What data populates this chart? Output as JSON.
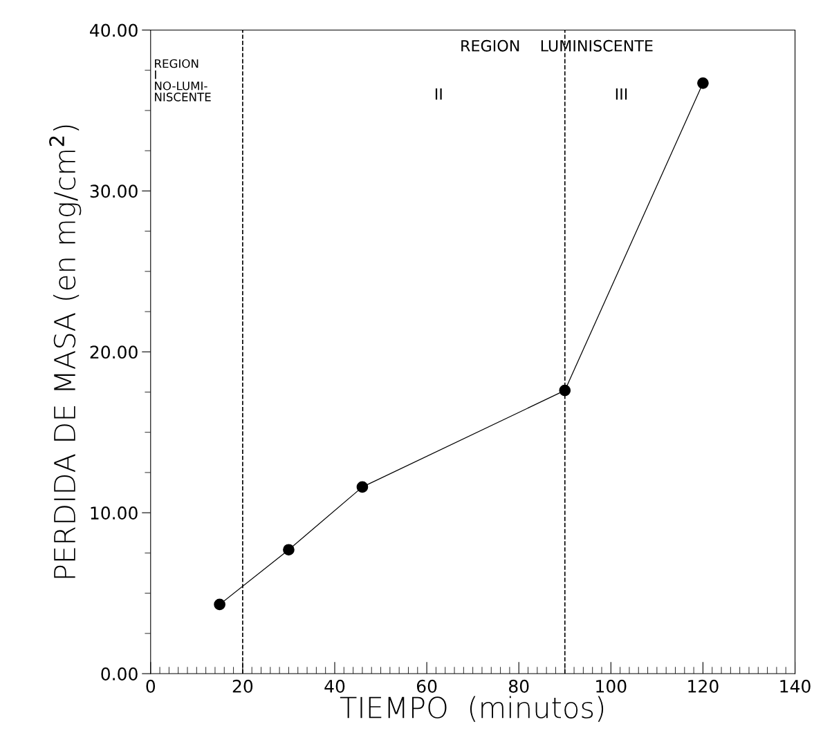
{
  "chart_data": {
    "type": "line",
    "xlabel": "TIEMPO  (minutos)",
    "ylabel": "PERDIDA DE MASA (en mg/cm$^{2}$)",
    "x": [
      15,
      30,
      46,
      90,
      120
    ],
    "values": [
      4.3,
      7.7,
      11.6,
      17.6,
      36.7
    ],
    "color": "#000000",
    "marker": "circle",
    "line_style": "solid",
    "grid": false,
    "xlim": [
      0,
      140
    ],
    "xticks": [
      0,
      20,
      40,
      60,
      80,
      100,
      120,
      140
    ],
    "ylim": [
      0,
      40
    ],
    "yticks": [
      {
        "value": 0,
        "label": "0.00"
      },
      {
        "value": 10,
        "label": "10.00"
      },
      {
        "value": 20,
        "label": "20.00"
      },
      {
        "value": 30,
        "label": "30.00"
      },
      {
        "value": 40,
        "label": "40.00"
      }
    ],
    "ref_lines": [
      {
        "axis": "x",
        "value": 20,
        "line_style": "dashed",
        "color": "#000000"
      },
      {
        "axis": "x",
        "value": 90,
        "line_style": "dashed",
        "color": "#000000"
      }
    ],
    "annotations": [
      "REGION\nI\nNO-LUMI-\nNISCENTE",
      "REGION    LUMINISCENTE",
      "II",
      "III"
    ]
  }
}
